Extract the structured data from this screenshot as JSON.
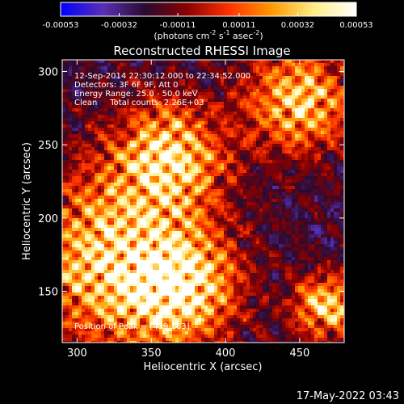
{
  "chart_data": {
    "type": "heatmap",
    "title": "Reconstructed RHESSI Image",
    "xlabel": "Heliocentric X (arcsec)",
    "ylabel": "Heliocentric Y (arcsec)",
    "xlim": [
      290,
      480
    ],
    "ylim": [
      115,
      308
    ],
    "x_ticks": [
      300,
      350,
      400,
      450
    ],
    "y_ticks": [
      150,
      200,
      250,
      300
    ],
    "colorbar": {
      "ticks": [
        "-0.00053",
        "-0.00032",
        "-0.00011",
        "0.00011",
        "0.00032",
        "0.00053"
      ],
      "tick_values": [
        -0.00053,
        -0.00032,
        -0.00011,
        0.00011,
        0.00032,
        0.00053
      ],
      "range": [
        -0.00053,
        0.00053
      ],
      "unit_label_parts": [
        "(photons cm",
        "-2",
        " s",
        "-1",
        " asec",
        "-2",
        ")"
      ],
      "colormap": [
        "#0000ff",
        "#5a2fb5",
        "#2a0a30",
        "#8b0000",
        "#ff3300",
        "#ff9900",
        "#ffee88",
        "#ffffff"
      ]
    },
    "annotations": {
      "time_range": "12-Sep-2014 22:30:12.000 to 22:34:52.000",
      "detectors": "Detectors: 3F 6F 9F, Att 0",
      "energy": "Energy Range: 25.0 - 50.0 keV",
      "method": "Clean     Total counts: 2.26E+03",
      "peak": "Position of Peak = [439,163]"
    },
    "sources": [
      {
        "x": 362,
        "y": 242,
        "r": 26
      },
      {
        "x": 323,
        "y": 172,
        "r": 40
      },
      {
        "x": 370,
        "y": 152,
        "r": 26
      },
      {
        "x": 450,
        "y": 280,
        "r": 24
      },
      {
        "x": 468,
        "y": 140,
        "r": 15
      }
    ],
    "timestamp": "17-May-2022 03:43"
  }
}
